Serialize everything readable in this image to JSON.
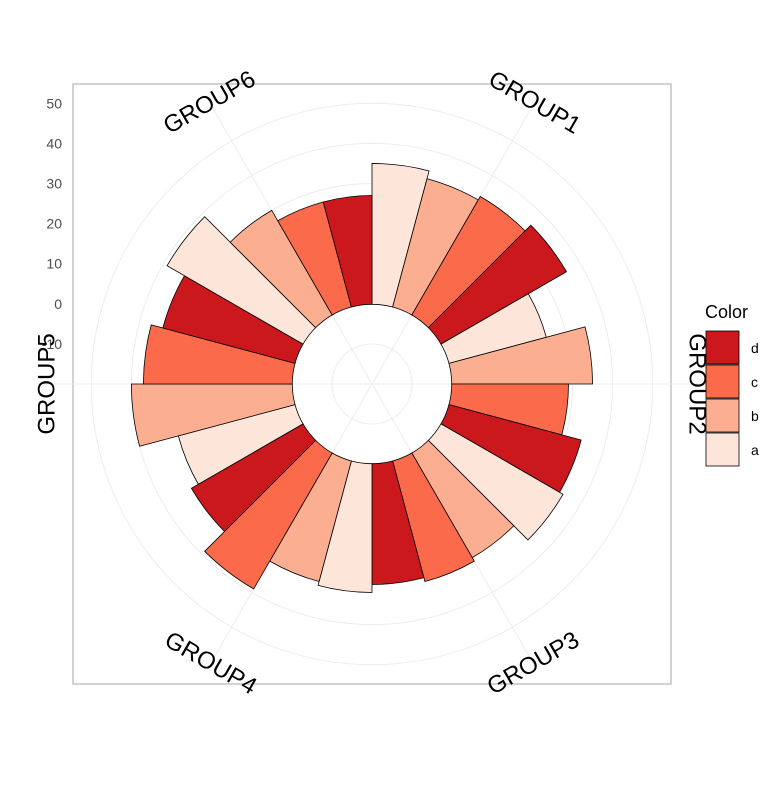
{
  "chart_data": {
    "type": "bar",
    "coordinate_system": "polar",
    "title": "",
    "xlabel": "",
    "ylabel": "",
    "ylim": [
      -20,
      62
    ],
    "yticks": [
      -10,
      0,
      10,
      20,
      30,
      40,
      50
    ],
    "grid": true,
    "categories": [
      "GROUP1",
      "GROUP2",
      "GROUP3",
      "GROUP4",
      "GROUP5",
      "GROUP6"
    ],
    "legend": {
      "title": "Color",
      "position": "right",
      "entries": [
        "d",
        "c",
        "b",
        "a"
      ]
    },
    "colors": {
      "a": "#FEE5D9",
      "b": "#FCAE91",
      "c": "#FB6A4A",
      "d": "#CB181D"
    },
    "series": [
      {
        "name": "a",
        "values": [
          35,
          25,
          35,
          32,
          30,
          39
        ]
      },
      {
        "name": "b",
        "values": [
          33,
          35,
          30,
          31,
          40,
          30
        ]
      },
      {
        "name": "c",
        "values": [
          34,
          29,
          31,
          39,
          37,
          27
        ]
      },
      {
        "name": "d",
        "values": [
          36,
          34,
          30,
          32,
          34,
          27
        ]
      }
    ]
  }
}
